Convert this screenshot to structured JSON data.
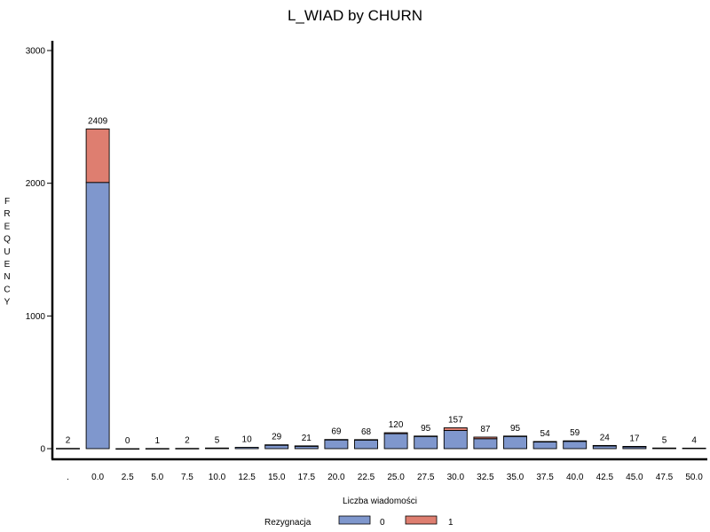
{
  "chart_data": {
    "type": "bar",
    "stacked": true,
    "title": "L_WIAD by CHURN",
    "xlabel": "Liczba wiadomości",
    "ylabel": "FREQUENCY",
    "ylim": [
      0,
      3000
    ],
    "yticks": [
      0,
      1000,
      2000,
      3000
    ],
    "categories": [
      ".",
      "0.0",
      "2.5",
      "5.0",
      "7.5",
      "10.0",
      "12.5",
      "15.0",
      "17.5",
      "20.0",
      "22.5",
      "25.0",
      "27.5",
      "30.0",
      "32.5",
      "35.0",
      "37.5",
      "40.0",
      "42.5",
      "45.0",
      "47.5",
      "50.0"
    ],
    "totals": [
      2,
      2409,
      0,
      1,
      2,
      5,
      10,
      29,
      21,
      69,
      68,
      120,
      95,
      157,
      87,
      95,
      54,
      59,
      24,
      17,
      5,
      4
    ],
    "series": [
      {
        "name": "0",
        "color": "#7f97cd",
        "values": [
          2,
          2006,
          0,
          1,
          2,
          5,
          10,
          27,
          19,
          67,
          66,
          113,
          93,
          137,
          75,
          93,
          52,
          55,
          21,
          15,
          5,
          4
        ]
      },
      {
        "name": "1",
        "color": "#de7e70",
        "values": [
          0,
          403,
          0,
          0,
          0,
          0,
          0,
          2,
          2,
          2,
          2,
          7,
          2,
          20,
          12,
          2,
          2,
          4,
          3,
          2,
          0,
          0
        ]
      }
    ],
    "legend": {
      "title": "Rezygnacja",
      "placement": "bottom"
    },
    "grid": false
  }
}
